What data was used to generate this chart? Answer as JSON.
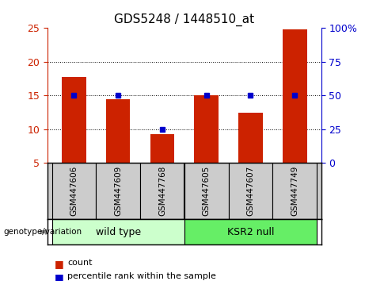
{
  "title": "GDS5248 / 1448510_at",
  "categories": [
    "GSM447606",
    "GSM447609",
    "GSM447768",
    "GSM447605",
    "GSM447607",
    "GSM447749"
  ],
  "counts": [
    17.7,
    14.5,
    9.3,
    15.0,
    12.5,
    24.8
  ],
  "percentile_ranks": [
    50,
    50,
    25,
    50,
    50,
    50
  ],
  "ylim_left": [
    5,
    25
  ],
  "ylim_right": [
    0,
    100
  ],
  "yticks_left": [
    5,
    10,
    15,
    20,
    25
  ],
  "yticks_right": [
    0,
    25,
    50,
    75,
    100
  ],
  "bar_color": "#cc2200",
  "dot_color": "#0000cc",
  "title_fontsize": 11,
  "group_label": "genotype/variation",
  "legend_count_label": "count",
  "legend_pct_label": "percentile rank within the sample",
  "ax_bg": "#ffffff",
  "label_bg": "#cccccc",
  "wt_color": "#ccffcc",
  "ksr_color": "#66ee66",
  "bar_width": 0.55,
  "baseline": 5,
  "grid_ticks": [
    10,
    15,
    20
  ]
}
